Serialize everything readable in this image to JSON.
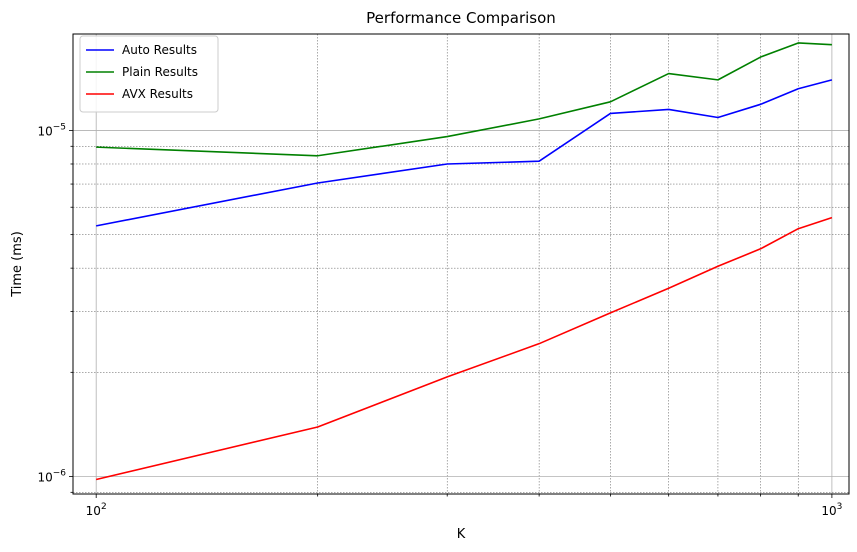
{
  "chart_data": {
    "type": "line",
    "title": "Performance Comparison",
    "xlabel": "K",
    "ylabel": "Time (ms)",
    "xscale": "log",
    "yscale": "log",
    "xlim": [
      93,
      1055
    ],
    "ylim": [
      8.9e-07,
      1.9e-05
    ],
    "grid": true,
    "legend": "top-left",
    "x": [
      100,
      200,
      300,
      400,
      500,
      600,
      700,
      800,
      900,
      1000
    ],
    "series": [
      {
        "name": "Auto Results",
        "color": "#0000ff",
        "values": [
          5.3e-06,
          7.05e-06,
          8e-06,
          8.15e-06,
          1.12e-05,
          1.15e-05,
          1.09e-05,
          1.19e-05,
          1.32e-05,
          1.4e-05
        ]
      },
      {
        "name": "Plain Results",
        "color": "#008000",
        "values": [
          8.95e-06,
          8.45e-06,
          9.6e-06,
          1.08e-05,
          1.21e-05,
          1.46e-05,
          1.4e-05,
          1.63e-05,
          1.79e-05,
          1.77e-05
        ]
      },
      {
        "name": "AVX Results",
        "color": "#ff0000",
        "values": [
          9.8e-07,
          1.39e-06,
          1.94e-06,
          2.42e-06,
          2.97e-06,
          3.5e-06,
          4.05e-06,
          4.55e-06,
          5.2e-06,
          5.6e-06
        ]
      }
    ],
    "xticks": [
      {
        "value": 100,
        "base": "10",
        "exp": "2"
      },
      {
        "value": 1000,
        "base": "10",
        "exp": "3"
      }
    ],
    "yticks": [
      {
        "value": 1e-06,
        "base": "10",
        "exp": "−6"
      },
      {
        "value": 1e-05,
        "base": "10",
        "exp": "−5"
      }
    ]
  }
}
